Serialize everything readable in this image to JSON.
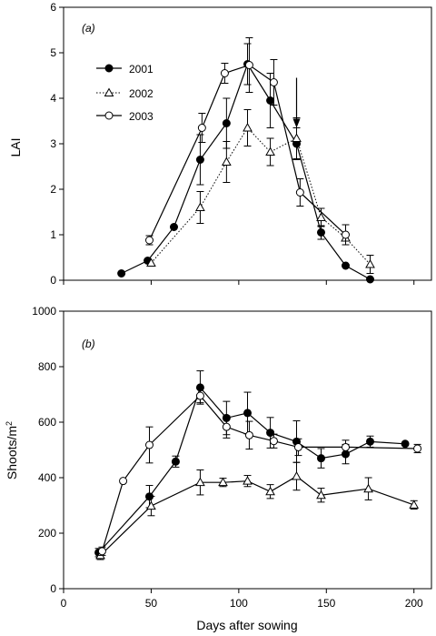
{
  "chart_data": [
    {
      "type": "line",
      "panel_label": "(a)",
      "xlabel": "",
      "ylabel": "LAI",
      "xlim": [
        0,
        210
      ],
      "ylim": [
        0,
        6
      ],
      "yticks": [
        0,
        1,
        2,
        3,
        4,
        5,
        6
      ],
      "ytick_labels": [
        "0",
        "1",
        "2",
        "3",
        "4",
        "5",
        "6"
      ],
      "legend_position": "top-left",
      "annotation": "downward arrow at day 133",
      "arrow_x": 133,
      "arrow_y_from": 4.45,
      "arrow_y_to": 3.35,
      "series": [
        {
          "name": "2001",
          "marker": "filled-circle",
          "line": "solid",
          "x": [
            33,
            48,
            63,
            78,
            93,
            105,
            118,
            133,
            147,
            161,
            175
          ],
          "y": [
            0.15,
            0.43,
            1.17,
            2.65,
            3.45,
            4.75,
            3.95,
            3.0,
            1.05,
            0.32,
            0.02
          ],
          "err": [
            0,
            0,
            0,
            0.55,
            0.55,
            0.45,
            0.6,
            0.35,
            0.15,
            0,
            0
          ]
        },
        {
          "name": "2002",
          "marker": "open-triangle",
          "line": "dotted",
          "x": [
            50,
            78,
            93,
            105,
            118,
            133,
            147,
            161,
            175
          ],
          "y": [
            0.38,
            1.6,
            2.6,
            3.35,
            2.82,
            3.12,
            1.38,
            0.93,
            0.35
          ],
          "err": [
            0,
            0.35,
            0.45,
            0.4,
            0.3,
            0.45,
            0.2,
            0,
            0.2
          ]
        },
        {
          "name": "2003",
          "marker": "open-circle",
          "line": "solid",
          "x": [
            49,
            79,
            92,
            106,
            120,
            135,
            161
          ],
          "y": [
            0.88,
            3.35,
            4.55,
            4.73,
            4.35,
            1.93,
            1.0
          ],
          "err": [
            0.1,
            0.32,
            0.22,
            0.6,
            0.5,
            0.3,
            0.22
          ]
        }
      ]
    },
    {
      "type": "line",
      "panel_label": "(b)",
      "xlabel": "Days after sowing",
      "ylabel": "Shoots/m",
      "ylabel_superscript": "2",
      "xlim": [
        0,
        210
      ],
      "ylim": [
        0,
        1000
      ],
      "xticks": [
        0,
        50,
        100,
        150,
        200
      ],
      "xtick_labels": [
        "0",
        "50",
        "100",
        "150",
        "200"
      ],
      "yticks": [
        0,
        200,
        400,
        600,
        800,
        1000
      ],
      "ytick_labels": [
        "0",
        "200",
        "400",
        "600",
        "800",
        "1000"
      ],
      "series": [
        {
          "name": "2001",
          "marker": "filled-circle",
          "line": "solid",
          "x": [
            20,
            49,
            64,
            78,
            93,
            105,
            118,
            133,
            147,
            161,
            175,
            195
          ],
          "y": [
            130,
            332,
            458,
            725,
            615,
            633,
            562,
            530,
            470,
            485,
            530,
            522
          ],
          "err": [
            15,
            40,
            20,
            60,
            60,
            75,
            55,
            75,
            35,
            35,
            20,
            0
          ]
        },
        {
          "name": "2002",
          "marker": "open-triangle",
          "line": "solid",
          "x": [
            21,
            50,
            78,
            91,
            105,
            118,
            133,
            147,
            174,
            200
          ],
          "y": [
            120,
            298,
            383,
            383,
            388,
            350,
            405,
            337,
            360,
            302
          ],
          "err": [
            15,
            35,
            45,
            15,
            20,
            25,
            50,
            25,
            40,
            15
          ]
        },
        {
          "name": "2003",
          "marker": "open-circle",
          "line": "solid",
          "x": [
            22,
            34,
            49,
            78,
            93,
            106,
            120,
            134,
            161,
            202
          ],
          "y": [
            135,
            388,
            518,
            695,
            583,
            553,
            532,
            510,
            510,
            505
          ],
          "err": [
            15,
            0,
            65,
            25,
            40,
            50,
            25,
            30,
            25,
            15
          ]
        }
      ]
    }
  ]
}
